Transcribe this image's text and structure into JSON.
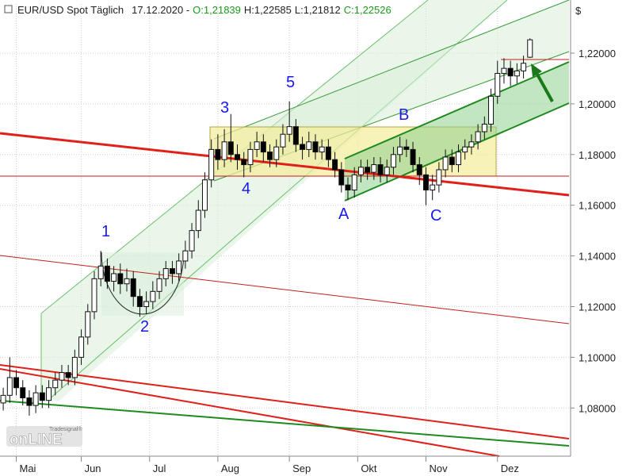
{
  "chart_data": {
    "type": "candlestick",
    "title": "EUR/USD Spot Täglich",
    "date_label": "17.12.2020 -",
    "ohlc_labels": [
      "O:1,21839",
      "H:1,22585",
      "L:1,21812",
      "C:1,22526"
    ],
    "y_unit": "$",
    "logo": {
      "top": "Tradesignal®",
      "main": "onLINE"
    },
    "annotations": [
      "1",
      "2",
      "3",
      "4",
      "5",
      "A",
      "B",
      "C"
    ],
    "up_color": "#ffffff",
    "down_color": "#000000",
    "grid": true,
    "xlim": [
      -1,
      174
    ],
    "xticks": [
      {
        "value": 4,
        "label": "Mai"
      },
      {
        "value": 24,
        "label": "Jun"
      },
      {
        "value": 45,
        "label": "Jul"
      },
      {
        "value": 66,
        "label": "Aug"
      },
      {
        "value": 88,
        "label": "Sep"
      },
      {
        "value": 109,
        "label": "Okt"
      },
      {
        "value": 130,
        "label": "Nov"
      },
      {
        "value": 152,
        "label": "Dez"
      }
    ],
    "ylim": [
      1.061,
      1.2394
    ],
    "yticks": [
      {
        "value": 1.08,
        "label": "1,08000"
      },
      {
        "value": 1.1,
        "label": "1,10000"
      },
      {
        "value": 1.12,
        "label": "1,12000"
      },
      {
        "value": 1.14,
        "label": "1,14000"
      },
      {
        "value": 1.16,
        "label": "1,16000"
      },
      {
        "value": 1.18,
        "label": "1,18000"
      },
      {
        "value": 1.2,
        "label": "1,20000"
      },
      {
        "value": 1.22,
        "label": "1,22000"
      }
    ],
    "x": [
      0,
      2,
      4,
      6,
      8,
      10,
      12,
      14,
      16,
      18,
      20,
      22,
      24,
      26,
      28,
      30,
      32,
      34,
      36,
      38,
      40,
      42,
      44,
      46,
      48,
      50,
      52,
      54,
      56,
      58,
      60,
      62,
      64,
      66,
      68,
      70,
      72,
      74,
      76,
      78,
      80,
      82,
      84,
      86,
      88,
      90,
      92,
      94,
      96,
      98,
      100,
      102,
      104,
      106,
      108,
      110,
      112,
      114,
      116,
      118,
      120,
      122,
      124,
      126,
      128,
      130,
      132,
      134,
      136,
      138,
      140,
      142,
      144,
      146,
      148,
      150,
      152,
      154,
      156,
      158,
      160,
      162
    ],
    "open": [
      1.082,
      1.085,
      1.092,
      1.088,
      1.084,
      1.081,
      1.086,
      1.083,
      1.088,
      1.091,
      1.094,
      1.092,
      1.1,
      1.108,
      1.118,
      1.131,
      1.136,
      1.13,
      1.133,
      1.129,
      1.131,
      1.124,
      1.12,
      1.122,
      1.126,
      1.131,
      1.135,
      1.133,
      1.138,
      1.142,
      1.15,
      1.158,
      1.17,
      1.182,
      1.178,
      1.185,
      1.18,
      1.178,
      1.176,
      1.182,
      1.185,
      1.181,
      1.178,
      1.183,
      1.188,
      1.191,
      1.184,
      1.182,
      1.185,
      1.181,
      1.183,
      1.178,
      1.174,
      1.168,
      1.166,
      1.172,
      1.175,
      1.173,
      1.176,
      1.172,
      1.175,
      1.18,
      1.183,
      1.182,
      1.176,
      1.172,
      1.166,
      1.168,
      1.174,
      1.179,
      1.176,
      1.181,
      1.183,
      1.185,
      1.189,
      1.192,
      1.203,
      1.212,
      1.214,
      1.211,
      1.213,
      1.21839
    ],
    "high": [
      1.088,
      1.1,
      1.095,
      1.091,
      1.087,
      1.089,
      1.089,
      1.091,
      1.094,
      1.097,
      1.097,
      1.103,
      1.111,
      1.121,
      1.134,
      1.142,
      1.139,
      1.136,
      1.137,
      1.135,
      1.134,
      1.127,
      1.126,
      1.13,
      1.134,
      1.138,
      1.138,
      1.141,
      1.146,
      1.153,
      1.162,
      1.173,
      1.186,
      1.188,
      1.19,
      1.196,
      1.184,
      1.181,
      1.185,
      1.189,
      1.188,
      1.184,
      1.186,
      1.192,
      1.201,
      1.194,
      1.187,
      1.189,
      1.188,
      1.186,
      1.186,
      1.181,
      1.177,
      1.171,
      1.175,
      1.178,
      1.178,
      1.179,
      1.179,
      1.178,
      1.183,
      1.187,
      1.186,
      1.185,
      1.179,
      1.175,
      1.172,
      1.177,
      1.182,
      1.182,
      1.184,
      1.186,
      1.188,
      1.192,
      1.195,
      1.206,
      1.217,
      1.218,
      1.217,
      1.216,
      1.219,
      1.22585
    ],
    "low": [
      1.079,
      1.082,
      1.085,
      1.081,
      1.077,
      1.078,
      1.08,
      1.08,
      1.085,
      1.088,
      1.089,
      1.089,
      1.097,
      1.105,
      1.115,
      1.128,
      1.127,
      1.126,
      1.125,
      1.126,
      1.12,
      1.116,
      1.117,
      1.119,
      1.123,
      1.128,
      1.129,
      1.13,
      1.135,
      1.139,
      1.147,
      1.155,
      1.167,
      1.174,
      1.175,
      1.177,
      1.174,
      1.171,
      1.173,
      1.179,
      1.177,
      1.175,
      1.175,
      1.18,
      1.185,
      1.181,
      1.178,
      1.179,
      1.178,
      1.178,
      1.175,
      1.171,
      1.165,
      1.162,
      1.163,
      1.169,
      1.17,
      1.17,
      1.169,
      1.169,
      1.172,
      1.177,
      1.179,
      1.173,
      1.168,
      1.16,
      1.162,
      1.165,
      1.171,
      1.173,
      1.173,
      1.178,
      1.18,
      1.182,
      1.186,
      1.189,
      1.2,
      1.208,
      1.207,
      1.208,
      1.21,
      1.21812
    ],
    "close": [
      1.085,
      1.092,
      1.088,
      1.084,
      1.081,
      1.086,
      1.083,
      1.088,
      1.091,
      1.094,
      1.092,
      1.1,
      1.108,
      1.118,
      1.131,
      1.136,
      1.13,
      1.133,
      1.129,
      1.131,
      1.124,
      1.12,
      1.122,
      1.126,
      1.131,
      1.135,
      1.133,
      1.138,
      1.142,
      1.15,
      1.158,
      1.17,
      1.182,
      1.178,
      1.185,
      1.18,
      1.178,
      1.176,
      1.182,
      1.185,
      1.181,
      1.178,
      1.183,
      1.188,
      1.191,
      1.184,
      1.182,
      1.185,
      1.181,
      1.183,
      1.178,
      1.174,
      1.168,
      1.166,
      1.172,
      1.175,
      1.173,
      1.176,
      1.172,
      1.175,
      1.18,
      1.183,
      1.182,
      1.176,
      1.172,
      1.166,
      1.168,
      1.174,
      1.179,
      1.176,
      1.181,
      1.183,
      1.185,
      1.189,
      1.192,
      1.203,
      1.212,
      1.214,
      1.211,
      1.213,
      1.216,
      1.22526
    ]
  }
}
